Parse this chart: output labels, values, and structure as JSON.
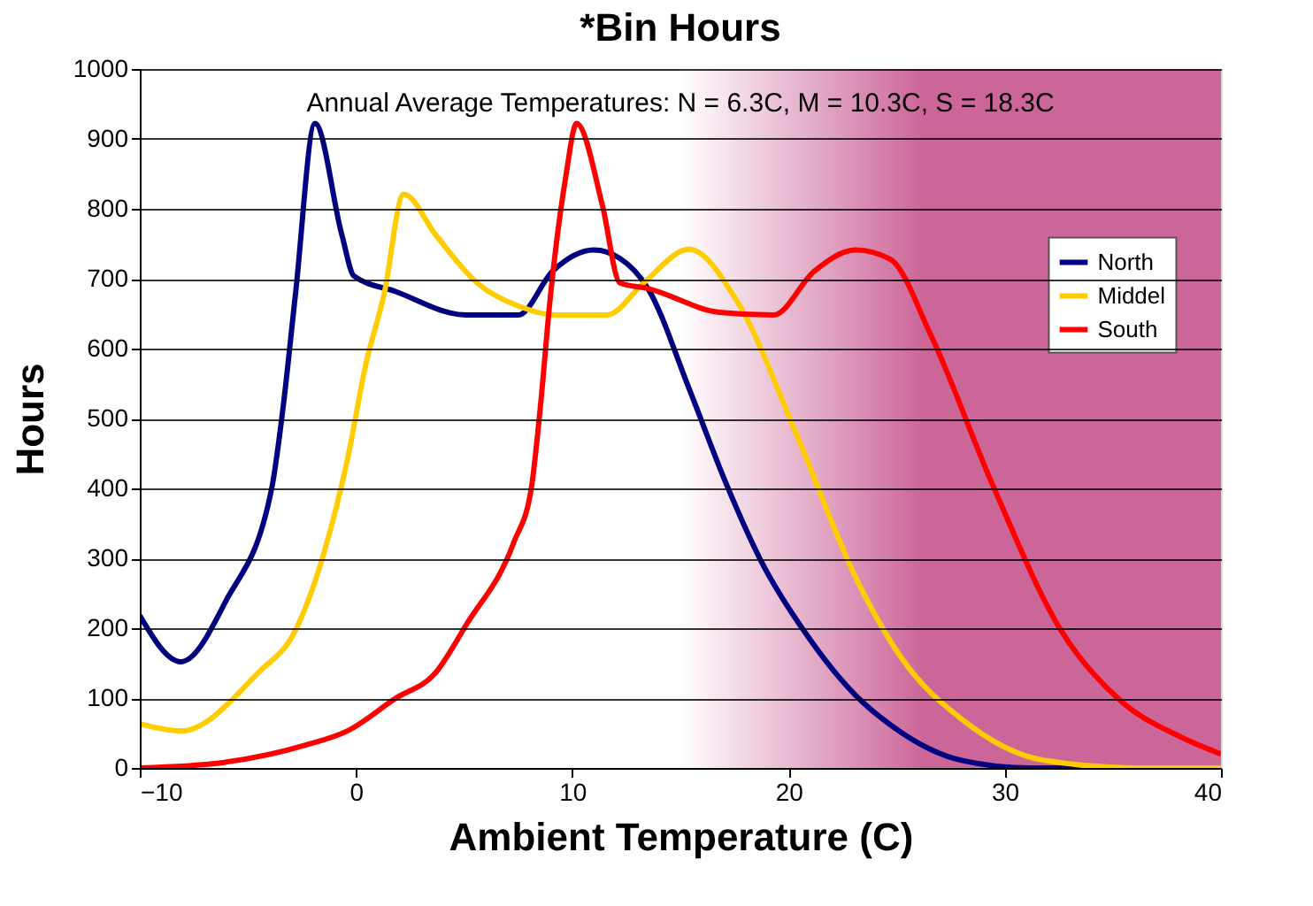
{
  "chart_data": {
    "type": "line",
    "title": "*Bin Hours",
    "xlabel": "Ambient Temperature (C)",
    "ylabel": "Hours",
    "annotations": [
      "Annual Average Temperatures: N = 6.3C, M = 10.3C, S = 18.3C"
    ],
    "xlim": [
      -10,
      40
    ],
    "xticks": [
      -10,
      0,
      10,
      20,
      30,
      40
    ],
    "ylim": [
      0,
      1000
    ],
    "yticks": [
      0,
      100,
      200,
      300,
      400,
      500,
      600,
      700,
      800,
      900,
      1000
    ],
    "grid": "y",
    "legend": "top right",
    "line_style": "solid",
    "marker": "none",
    "bands": [
      {
        "axis": "x",
        "from": 15,
        "to": 40,
        "color": "#cc6699"
      }
    ],
    "series": [
      {
        "name": "North",
        "color": "#000080",
        "x": [
          -10,
          -8.1,
          -6,
          -3.9,
          -3.4,
          -2.8,
          -1.9,
          -0.65,
          -0.1,
          1.8,
          5.1,
          7.5,
          9.1,
          11,
          12.2,
          13.5,
          15.4,
          17.1,
          18.7,
          20.9,
          23.1,
          24.7,
          28,
          31.2,
          40
        ],
        "values": [
          218,
          152,
          240,
          400,
          509,
          678,
          922,
          762,
          704,
          682,
          648,
          648,
          711,
          741,
          729,
          686,
          543,
          408,
          298,
          188,
          104,
          62,
          11,
          0,
          0
        ]
      },
      {
        "name": "Middel",
        "color": "#ffcc00",
        "x": [
          -10,
          -8.1,
          -4.5,
          -2.8,
          -1.5,
          -0.4,
          0.45,
          1.3,
          2.2,
          3.7,
          5.6,
          7.5,
          9.2,
          11.6,
          13.3,
          15.4,
          17.6,
          20.4,
          23.1,
          25.3,
          28,
          31.8,
          36.2,
          40
        ],
        "values": [
          63,
          53,
          137,
          197,
          306,
          441,
          577,
          678,
          821,
          762,
          694,
          661,
          648,
          648,
          694,
          742,
          669,
          475,
          273,
          154,
          70,
          11,
          0,
          0
        ]
      },
      {
        "name": "South",
        "color": "#ff0000",
        "x": [
          -10,
          -6.1,
          -2.3,
          -0.4,
          1.8,
          3.7,
          5.1,
          7.3,
          8.1,
          8.5,
          9,
          9.7,
          10.2,
          11.4,
          12.2,
          13.5,
          16.8,
          19.3,
          21.2,
          23.1,
          24.7,
          26.6,
          29.4,
          32.6,
          35.4,
          38.1,
          40
        ],
        "values": [
          0,
          8,
          33,
          53,
          99,
          137,
          205,
          323,
          399,
          509,
          678,
          846,
          922,
          804,
          694,
          686,
          652,
          648,
          711,
          741,
          728,
          618,
          408,
          197,
          95,
          45,
          20
        ]
      }
    ]
  }
}
